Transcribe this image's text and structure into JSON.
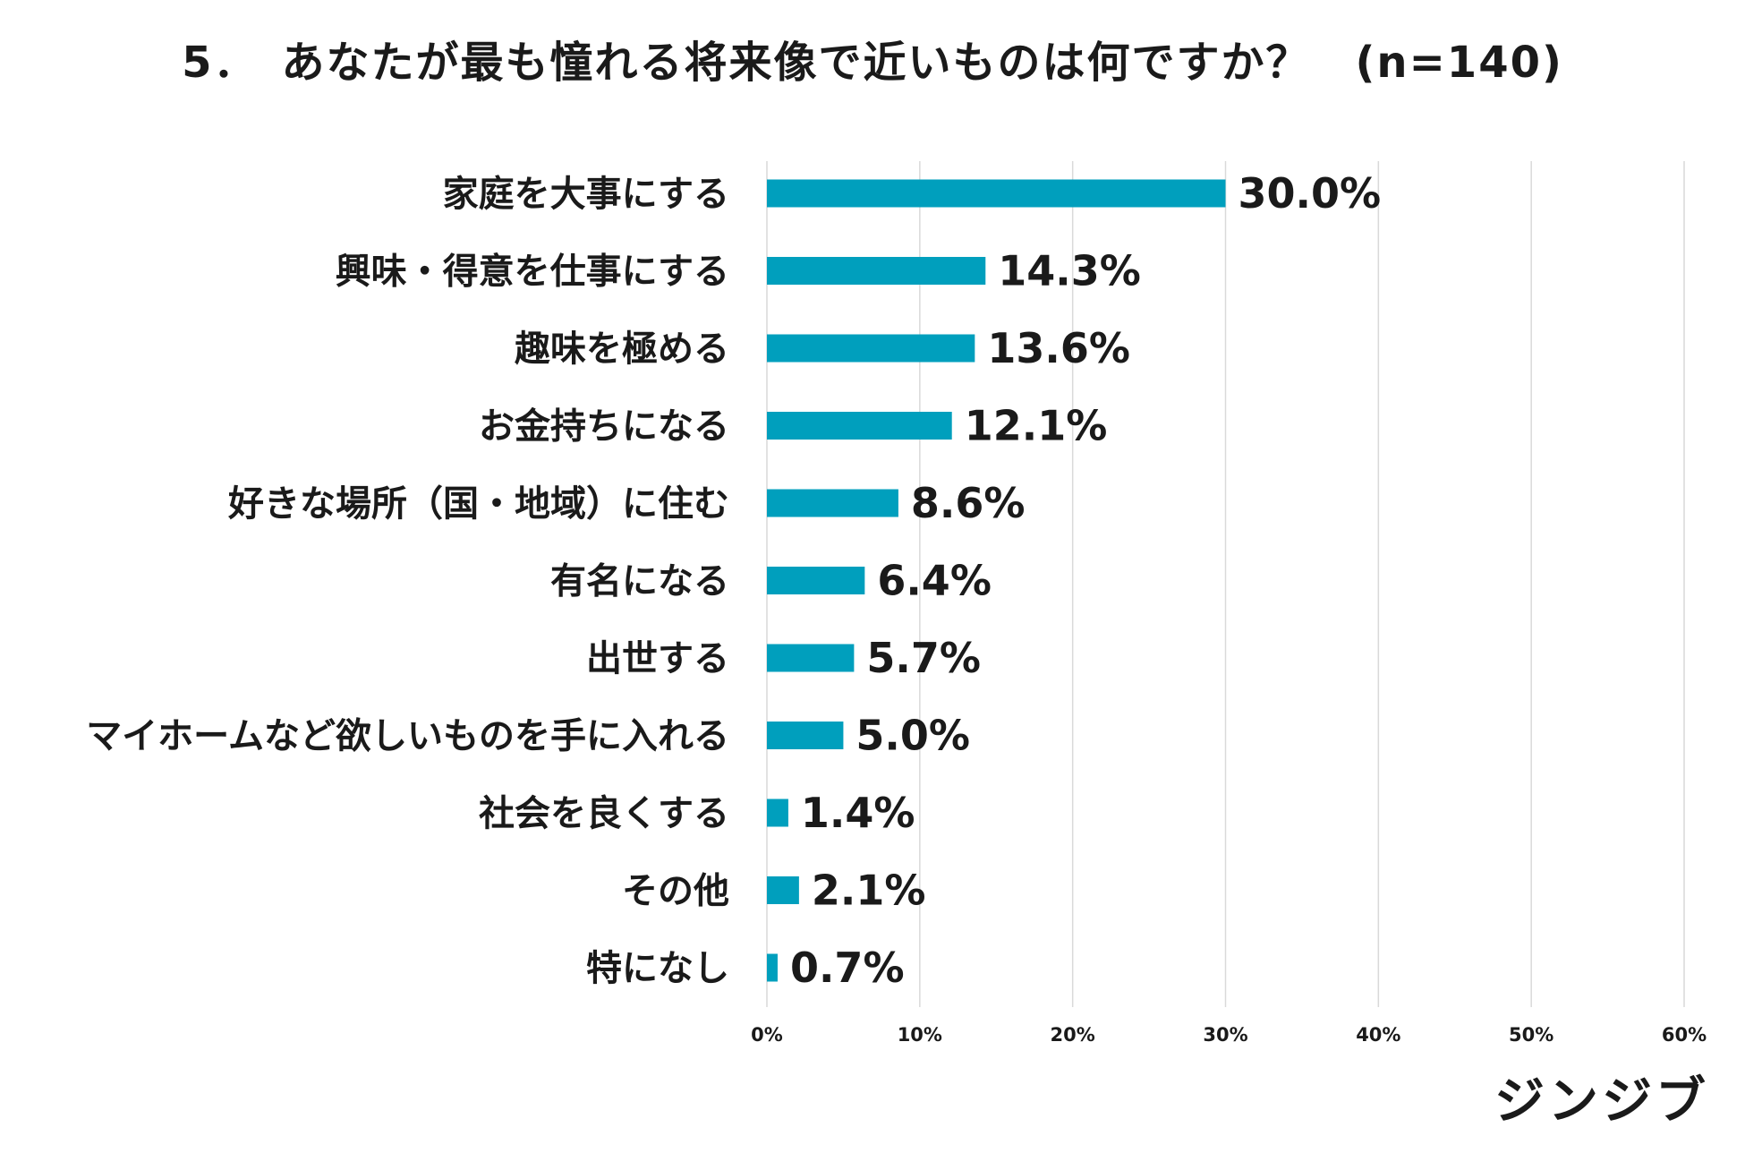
{
  "chart_data": {
    "type": "bar",
    "orientation": "horizontal",
    "title": "5．　あなたが最も憧れる将来像で近いものは何ですか？　(n=140)",
    "categories": [
      "家庭を大事にする",
      "興味・得意を仕事にする",
      "趣味を極める",
      "お金持ちになる",
      "好きな場所（国・地域）に住む",
      "有名になる",
      "出世する",
      "マイホームなど欲しいものを手に入れる",
      "社会を良くする",
      "その他",
      "特になし"
    ],
    "values": [
      30.0,
      14.3,
      13.6,
      12.1,
      8.6,
      6.4,
      5.7,
      5.0,
      1.4,
      2.1,
      0.7
    ],
    "value_labels": [
      "30.0%",
      "14.3%",
      "13.6%",
      "12.1%",
      "8.6%",
      "6.4%",
      "5.7%",
      "5.0%",
      "1.4%",
      "2.1%",
      "0.7%"
    ],
    "xlim": [
      0,
      60
    ],
    "ticks": [
      "0%",
      "10%",
      "20%",
      "30%",
      "40%",
      "50%",
      "60%"
    ],
    "bar_color": "#009fbd",
    "grid": true,
    "xlabel": "",
    "ylabel": ""
  },
  "brand": "ジンジブ"
}
